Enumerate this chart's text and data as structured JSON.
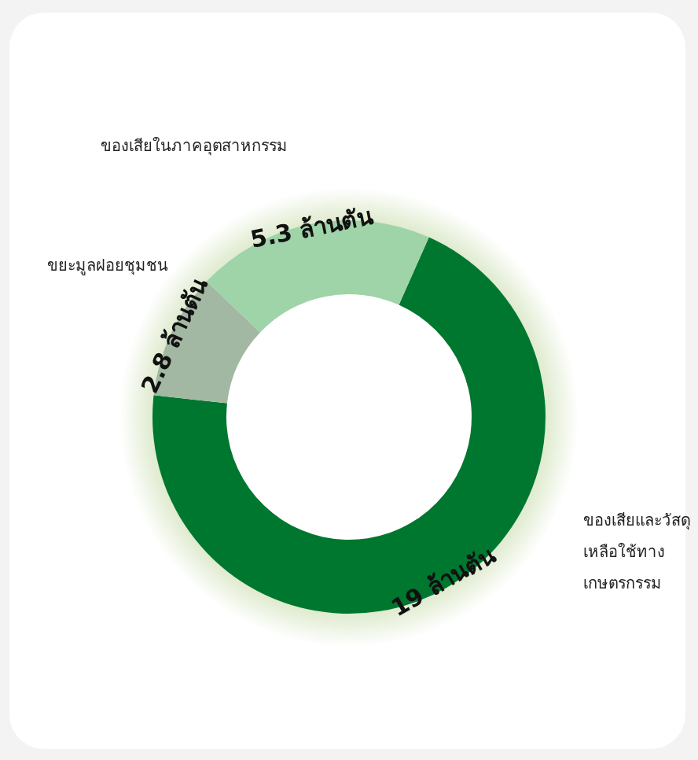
{
  "chart_data": {
    "type": "donut",
    "categories": [
      "ของเสียและวัสดุเหลือใช้ทางเกษตรกรรม",
      "ขยะมูลฝอยชุมชน",
      "ของเสียในภาคอุตสาหกรรม"
    ],
    "values": [
      19,
      2.8,
      5.3
    ],
    "colors": [
      "#00772f",
      "#a3b8a2",
      "#9fd3a8"
    ],
    "value_labels": [
      "19 ล้านตัน",
      "2.8 ล้านตัน",
      "5.3 ล้านตัน"
    ]
  }
}
